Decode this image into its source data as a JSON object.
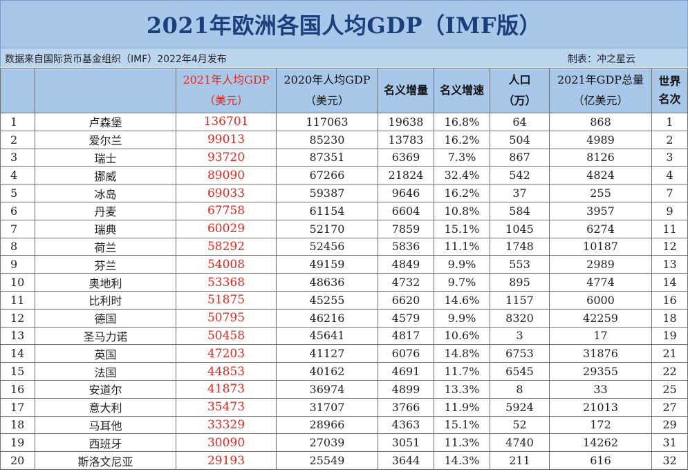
{
  "title": "2021年欧洲各国人均GDP（IMF版）",
  "source_note": "数据来自国际货币基金组织（IMF）2022年4月发布",
  "maker": "制表：冲之星云",
  "headers": {
    "rank": "",
    "country": "",
    "gdp2021_l1": "2021年人均GDP",
    "gdp2021_l2": "（美元）",
    "gdp2020_l1": "2020年人均GDP",
    "gdp2020_l2": "（美元）",
    "nominal_increase": "名义增量",
    "nominal_growth": "名义增速",
    "population_l1": "人口",
    "population_l2": "（万）",
    "total_l1": "2021年GDP总量",
    "total_l2": "（亿美元）",
    "world_l1": "世界",
    "world_l2": "名次"
  },
  "rows": [
    {
      "rank": "1",
      "country": "卢森堡",
      "gdp2021": "136701",
      "gdp2020": "117063",
      "inc": "19638",
      "growth": "16.8%",
      "pop": "64",
      "total": "868",
      "world": "1"
    },
    {
      "rank": "2",
      "country": "爱尔兰",
      "gdp2021": "99013",
      "gdp2020": "85230",
      "inc": "13783",
      "growth": "16.2%",
      "pop": "504",
      "total": "4989",
      "world": "2"
    },
    {
      "rank": "3",
      "country": "瑞士",
      "gdp2021": "93720",
      "gdp2020": "87351",
      "inc": "6369",
      "growth": "7.3%",
      "pop": "867",
      "total": "8126",
      "world": "3"
    },
    {
      "rank": "4",
      "country": "挪威",
      "gdp2021": "89090",
      "gdp2020": "67266",
      "inc": "21824",
      "growth": "32.4%",
      "pop": "542",
      "total": "4824",
      "world": "4"
    },
    {
      "rank": "5",
      "country": "冰岛",
      "gdp2021": "69033",
      "gdp2020": "59387",
      "inc": "9646",
      "growth": "16.2%",
      "pop": "37",
      "total": "255",
      "world": "7"
    },
    {
      "rank": "6",
      "country": "丹麦",
      "gdp2021": "67758",
      "gdp2020": "61154",
      "inc": "6604",
      "growth": "10.8%",
      "pop": "584",
      "total": "3957",
      "world": "9"
    },
    {
      "rank": "7",
      "country": "瑞典",
      "gdp2021": "60029",
      "gdp2020": "52170",
      "inc": "7859",
      "growth": "15.1%",
      "pop": "1045",
      "total": "6274",
      "world": "11"
    },
    {
      "rank": "8",
      "country": "荷兰",
      "gdp2021": "58292",
      "gdp2020": "52456",
      "inc": "5836",
      "growth": "11.1%",
      "pop": "1748",
      "total": "10187",
      "world": "12"
    },
    {
      "rank": "9",
      "country": "芬兰",
      "gdp2021": "54008",
      "gdp2020": "49159",
      "inc": "4849",
      "growth": "9.9%",
      "pop": "553",
      "total": "2989",
      "world": "13"
    },
    {
      "rank": "10",
      "country": "奥地利",
      "gdp2021": "53368",
      "gdp2020": "48636",
      "inc": "4732",
      "growth": "9.7%",
      "pop": "895",
      "total": "4774",
      "world": "14"
    },
    {
      "rank": "11",
      "country": "比利时",
      "gdp2021": "51875",
      "gdp2020": "45255",
      "inc": "6620",
      "growth": "14.6%",
      "pop": "1157",
      "total": "6000",
      "world": "16"
    },
    {
      "rank": "12",
      "country": "德国",
      "gdp2021": "50795",
      "gdp2020": "46216",
      "inc": "4579",
      "growth": "9.9%",
      "pop": "8320",
      "total": "42259",
      "world": "18"
    },
    {
      "rank": "13",
      "country": "圣马力诺",
      "gdp2021": "50458",
      "gdp2020": "45641",
      "inc": "4817",
      "growth": "10.6%",
      "pop": "3",
      "total": "17",
      "world": "19"
    },
    {
      "rank": "14",
      "country": "英国",
      "gdp2021": "47203",
      "gdp2020": "41127",
      "inc": "6076",
      "growth": "14.8%",
      "pop": "6753",
      "total": "31876",
      "world": "21"
    },
    {
      "rank": "15",
      "country": "法国",
      "gdp2021": "44853",
      "gdp2020": "40162",
      "inc": "4691",
      "growth": "11.7%",
      "pop": "6545",
      "total": "29355",
      "world": "22"
    },
    {
      "rank": "16",
      "country": "安道尔",
      "gdp2021": "41873",
      "gdp2020": "36974",
      "inc": "4899",
      "growth": "13.3%",
      "pop": "8",
      "total": "33",
      "world": "25"
    },
    {
      "rank": "17",
      "country": "意大利",
      "gdp2021": "35473",
      "gdp2020": "31707",
      "inc": "3766",
      "growth": "11.9%",
      "pop": "5924",
      "total": "21013",
      "world": "27"
    },
    {
      "rank": "18",
      "country": "马耳他",
      "gdp2021": "33329",
      "gdp2020": "28966",
      "inc": "4363",
      "growth": "15.1%",
      "pop": "52",
      "total": "172",
      "world": "29"
    },
    {
      "rank": "19",
      "country": "西班牙",
      "gdp2021": "30090",
      "gdp2020": "27039",
      "inc": "3051",
      "growth": "11.3%",
      "pop": "4740",
      "total": "14262",
      "world": "31"
    },
    {
      "rank": "20",
      "country": "斯洛文尼亚",
      "gdp2021": "29193",
      "gdp2020": "25549",
      "inc": "3644",
      "growth": "14.3%",
      "pop": "211",
      "total": "616",
      "world": "32"
    }
  ],
  "colors": {
    "header_bg": "#a8c8ea",
    "subbar_bg": "#bcd6f0",
    "title_text": "#1c3e7a",
    "highlight_red": "#e8261c"
  }
}
